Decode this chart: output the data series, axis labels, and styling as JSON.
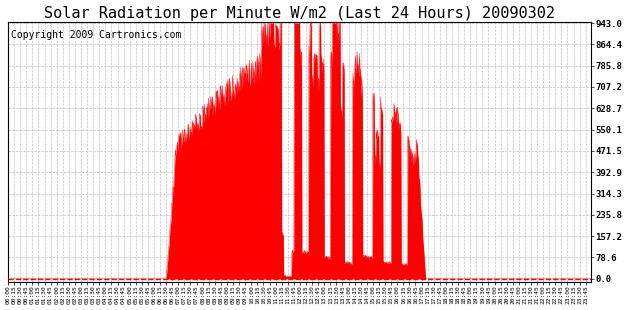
{
  "title": "Solar Radiation per Minute W/m2 (Last 24 Hours) 20090302",
  "copyright": "Copyright 2009 Cartronics.com",
  "y_ticks": [
    0.0,
    78.6,
    157.2,
    235.8,
    314.3,
    392.9,
    471.5,
    550.1,
    628.7,
    707.2,
    785.8,
    864.4,
    943.0
  ],
  "y_max": 943.0,
  "y_min": 0.0,
  "fill_color": "#FF0000",
  "line_color": "#FF0000",
  "dashed_line_color": "#FF0000",
  "grid_color": "#C0C0C0",
  "bg_color": "#FFFFFF",
  "title_fontsize": 11,
  "copyright_fontsize": 7,
  "x_tick_interval_minutes": 15,
  "total_minutes": 1440
}
